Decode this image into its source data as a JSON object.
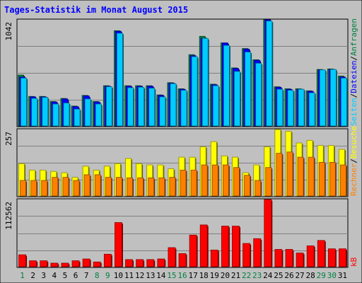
{
  "chart_data": {
    "type": "bar",
    "title": "Tages-Statistik im Monat August 2015",
    "categories": [
      "1",
      "2",
      "3",
      "4",
      "5",
      "6",
      "7",
      "8",
      "9",
      "10",
      "11",
      "12",
      "13",
      "14",
      "15",
      "16",
      "17",
      "18",
      "19",
      "20",
      "21",
      "22",
      "23",
      "24",
      "25",
      "26",
      "27",
      "28",
      "29",
      "30",
      "31"
    ],
    "weekend_days": [
      "1",
      "8",
      "9",
      "15",
      "16",
      "22",
      "23",
      "29",
      "30"
    ],
    "panels": [
      {
        "id": "top",
        "max_label": "1042",
        "ylim": [
          0,
          1042
        ],
        "series": [
          {
            "name": "Anfragen",
            "color": "#008040",
            "values": [
              500,
              290,
              290,
              240,
              270,
              195,
              300,
              240,
              395,
              935,
              395,
              395,
              395,
              305,
              425,
              365,
              700,
              880,
              410,
              815,
              570,
              760,
              650,
              1042,
              385,
              365,
              365,
              345,
              555,
              560,
              490
            ]
          },
          {
            "name": "Dateien",
            "color": "#0000ff",
            "values": [
              480,
              285,
              285,
              235,
              265,
              190,
              295,
              235,
              390,
              930,
              390,
              390,
              390,
              300,
              420,
              360,
              690,
              860,
              405,
              815,
              565,
              755,
              645,
              1042,
              380,
              360,
              360,
              340,
              550,
              555,
              480
            ]
          },
          {
            "name": "Seiten",
            "color": "#00ccff",
            "values": [
              470,
              270,
              280,
              215,
              225,
              165,
              265,
              215,
              385,
              910,
              375,
              380,
              370,
              285,
              415,
              350,
              680,
              860,
              395,
              790,
              535,
              725,
              615,
              1030,
              360,
              350,
              360,
              325,
              550,
              555,
              470
            ]
          }
        ]
      },
      {
        "id": "middle",
        "max_label": "257",
        "ylim": [
          0,
          257
        ],
        "series": [
          {
            "name": "Besuche",
            "color": "#ffff00",
            "values": [
              125,
              100,
              100,
              95,
              90,
              72,
              115,
              100,
              115,
              125,
              145,
              125,
              120,
              120,
              105,
              150,
              150,
              190,
              210,
              155,
              150,
              90,
              120,
              190,
              257,
              250,
              205,
              215,
              195,
              195,
              180
            ]
          },
          {
            "name": "Rechner",
            "color": "#ff8000",
            "values": [
              60,
              60,
              60,
              72,
              72,
              60,
              82,
              82,
              72,
              72,
              70,
              70,
              70,
              70,
              72,
              100,
              100,
              120,
              120,
              120,
              110,
              80,
              60,
              110,
              165,
              170,
              150,
              150,
              130,
              130,
              120
            ]
          }
        ]
      },
      {
        "id": "bottom",
        "max_label": "112562",
        "ylim": [
          0,
          112562
        ],
        "series": [
          {
            "name": "kB",
            "color": "#ff0000",
            "values": [
              20000,
              10000,
              10000,
              6000,
              6000,
              10000,
              13000,
              8000,
              21000,
              74000,
              12000,
              12000,
              12000,
              13000,
              32000,
              22000,
              53000,
              70000,
              28000,
              68000,
              68000,
              39000,
              47000,
              112562,
              29000,
              29000,
              23000,
              35000,
              44000,
              30000,
              30000
            ]
          }
        ]
      }
    ],
    "legend_right": [
      {
        "text": "Anfragen",
        "color": "#008040"
      },
      {
        "text": "Dateien",
        "color": "#0000ff"
      },
      {
        "text": "Seiten",
        "color": "#00ccff"
      },
      {
        "text": "Besuche",
        "color": "#ffff00"
      },
      {
        "text": "Rechner",
        "color": "#ff8000"
      },
      {
        "text": "kB",
        "color": "#ff0000"
      }
    ]
  }
}
